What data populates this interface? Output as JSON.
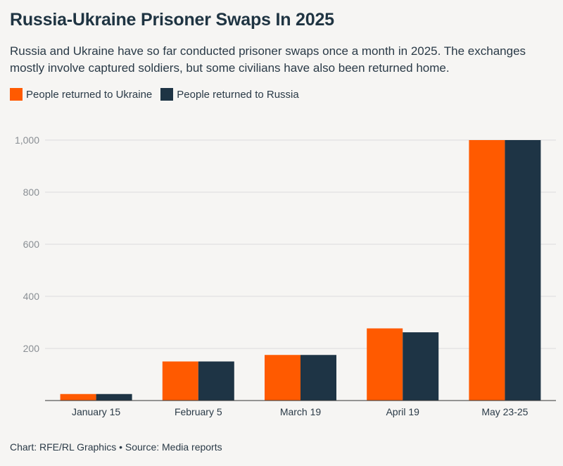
{
  "title": "Russia-Ukraine Prisoner Swaps In 2025",
  "subtitle": "Russia and Ukraine have so far conducted prisoner swaps once a month in 2025. The exchanges mostly involve captured soldiers, but some civilians have also been returned home.",
  "footer": "Chart: RFE/RL Graphics • Source: Media reports",
  "colors": {
    "ukraine": "#ff5a00",
    "russia": "#1e3445"
  },
  "chart_data": {
    "type": "bar",
    "categories": [
      "January 15",
      "February 5",
      "March 19",
      "April 19",
      "May 23-25"
    ],
    "series": [
      {
        "name": "People returned to Ukraine",
        "values": [
          25,
          150,
          175,
          277,
          1000
        ]
      },
      {
        "name": "People returned to Russia",
        "values": [
          25,
          150,
          175,
          262,
          1000
        ]
      }
    ],
    "ylim": [
      0,
      1000
    ],
    "yticks": [
      200,
      400,
      600,
      800,
      1000
    ],
    "ytick_labels": [
      "200",
      "400",
      "600",
      "800",
      "1,000"
    ],
    "grid": true,
    "legend_placement": "top-left"
  }
}
